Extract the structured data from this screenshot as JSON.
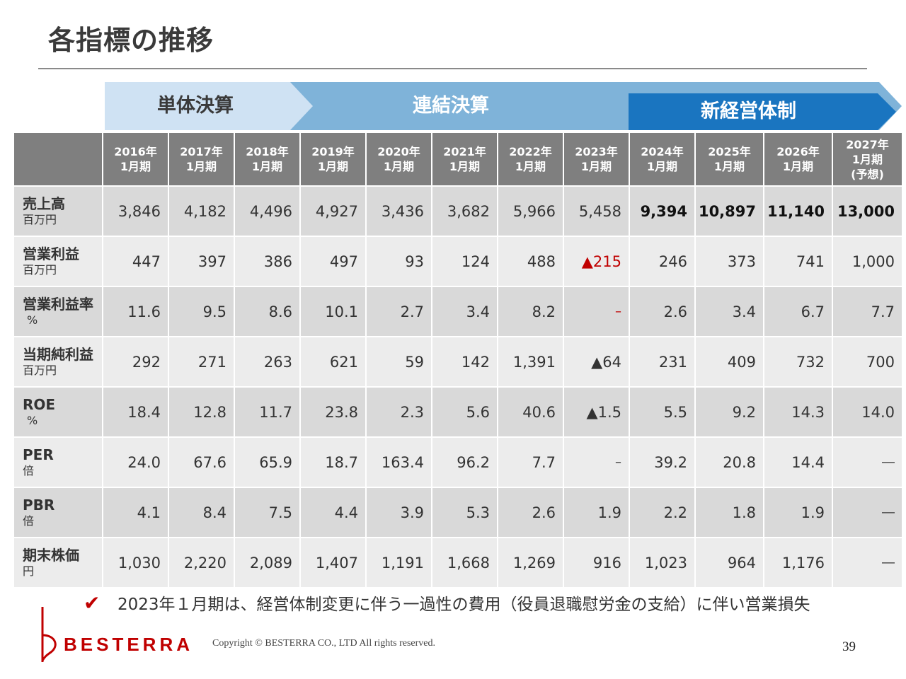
{
  "title": "各指標の推移",
  "phases": [
    {
      "label": "単体決算",
      "color": "#cfe2f3"
    },
    {
      "label": "連結決算",
      "color": "#7fb3d9"
    },
    {
      "label": "新経営体制",
      "color": "#1a75c0"
    }
  ],
  "table": {
    "columns": [
      {
        "year": "2016年",
        "period": "1月期",
        "note": ""
      },
      {
        "year": "2017年",
        "period": "1月期",
        "note": ""
      },
      {
        "year": "2018年",
        "period": "1月期",
        "note": ""
      },
      {
        "year": "2019年",
        "period": "1月期",
        "note": ""
      },
      {
        "year": "2020年",
        "period": "1月期",
        "note": ""
      },
      {
        "year": "2021年",
        "period": "1月期",
        "note": ""
      },
      {
        "year": "2022年",
        "period": "1月期",
        "note": ""
      },
      {
        "year": "2023年",
        "period": "1月期",
        "note": ""
      },
      {
        "year": "2024年",
        "period": "1月期",
        "note": ""
      },
      {
        "year": "2025年",
        "period": "1月期",
        "note": ""
      },
      {
        "year": "2026年",
        "period": "1月期",
        "note": ""
      },
      {
        "year": "2027年",
        "period": "1月期",
        "note": "(予想)"
      }
    ],
    "rows": [
      {
        "label": "売上高",
        "unit": "百万円",
        "values": [
          "3,846",
          "4,182",
          "4,496",
          "4,927",
          "3,436",
          "3,682",
          "5,966",
          "5,458",
          "9,394",
          "10,897",
          "11,140",
          "13,000"
        ]
      },
      {
        "label": "営業利益",
        "unit": "百万円",
        "values": [
          "447",
          "397",
          "386",
          "497",
          "93",
          "124",
          "488",
          "▲215",
          "246",
          "373",
          "741",
          "1,000"
        ]
      },
      {
        "label": "営業利益率",
        "unit": "%",
        "values": [
          "11.6",
          "9.5",
          "8.6",
          "10.1",
          "2.7",
          "3.4",
          "8.2",
          "–",
          "2.6",
          "3.4",
          "6.7",
          "7.7"
        ]
      },
      {
        "label": "当期純利益",
        "unit": "百万円",
        "values": [
          "292",
          "271",
          "263",
          "621",
          "59",
          "142",
          "1,391",
          "▲64",
          "231",
          "409",
          "732",
          "700"
        ]
      },
      {
        "label": "ROE",
        "unit": "%",
        "values": [
          "18.4",
          "12.8",
          "11.7",
          "23.8",
          "2.3",
          "5.6",
          "40.6",
          "▲1.5",
          "5.5",
          "9.2",
          "14.3",
          "14.0"
        ]
      },
      {
        "label": "PER",
        "unit": "倍",
        "values": [
          "24.0",
          "67.6",
          "65.9",
          "18.7",
          "163.4",
          "96.2",
          "7.7",
          "–",
          "39.2",
          "20.8",
          "14.4",
          "―"
        ]
      },
      {
        "label": "PBR",
        "unit": "倍",
        "values": [
          "4.1",
          "8.4",
          "7.5",
          "4.4",
          "3.9",
          "5.3",
          "2.6",
          "1.9",
          "2.2",
          "1.8",
          "1.9",
          "―"
        ]
      },
      {
        "label": "期末株価",
        "unit": "円",
        "values": [
          "1,030",
          "2,220",
          "2,089",
          "1,407",
          "1,191",
          "1,668",
          "1,269",
          "916",
          "1,023",
          "964",
          "1,176",
          "―"
        ]
      }
    ]
  },
  "note": {
    "check_icon": "check-icon",
    "text": "2023年１月期は、経営体制変更に伴う一過性の費用（役員退職慰労金の支給）に伴い営業損失"
  },
  "footer": {
    "logo_text": "BESTERRA",
    "copyright": "Copyright © BESTERRA CO., LTD All rights reserved.",
    "page_number": "39"
  },
  "colors": {
    "negative": "#c00000",
    "header_bg": "#7f7f7f",
    "logo_red": "#c00000"
  }
}
